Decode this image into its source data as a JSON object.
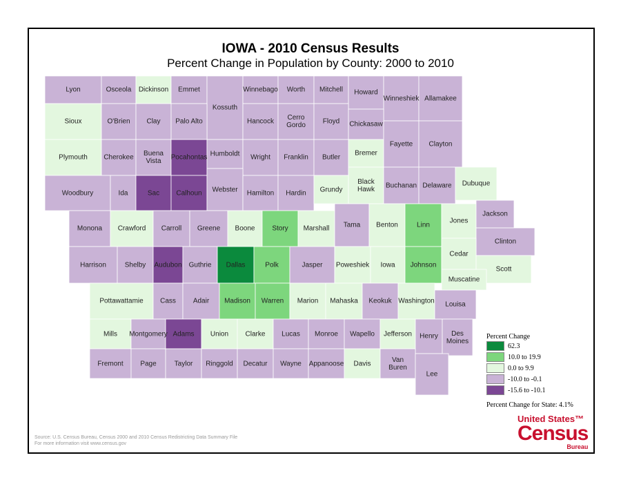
{
  "header": {
    "title": "IOWA - 2010 Census Results",
    "subtitle": "Percent Change in Population by County:  2000 to 2010"
  },
  "counties": [
    {
      "name": "Lyon",
      "color": "#c9b3d6"
    },
    {
      "name": "Osceola",
      "color": "#c9b3d6"
    },
    {
      "name": "Dickinson",
      "color": "#e3f7df"
    },
    {
      "name": "Emmet",
      "color": "#c9b3d6"
    },
    {
      "name": "Kossuth",
      "color": "#c9b3d6"
    },
    {
      "name": "Winnebago",
      "color": "#c9b3d6"
    },
    {
      "name": "Worth",
      "color": "#c9b3d6"
    },
    {
      "name": "Mitchell",
      "color": "#c9b3d6"
    },
    {
      "name": "Howard",
      "color": "#c9b3d6"
    },
    {
      "name": "Winneshiek",
      "color": "#c9b3d6"
    },
    {
      "name": "Allamakee",
      "color": "#c9b3d6"
    },
    {
      "name": "Sioux",
      "color": "#e3f7df"
    },
    {
      "name": "O'Brien",
      "color": "#c9b3d6"
    },
    {
      "name": "Clay",
      "color": "#c9b3d6"
    },
    {
      "name": "Palo Alto",
      "color": "#c9b3d6"
    },
    {
      "name": "Hancock",
      "color": "#c9b3d6"
    },
    {
      "name": "Cerro Gordo",
      "color": "#c9b3d6"
    },
    {
      "name": "Floyd",
      "color": "#c9b3d6"
    },
    {
      "name": "Chickasaw",
      "color": "#c9b3d6"
    },
    {
      "name": "Plymouth",
      "color": "#e3f7df"
    },
    {
      "name": "Cherokee",
      "color": "#c9b3d6"
    },
    {
      "name": "Buena Vista",
      "color": "#c9b3d6"
    },
    {
      "name": "Pocahontas",
      "color": "#7b4794"
    },
    {
      "name": "Humboldt",
      "color": "#c9b3d6"
    },
    {
      "name": "Wright",
      "color": "#c9b3d6"
    },
    {
      "name": "Franklin",
      "color": "#c9b3d6"
    },
    {
      "name": "Butler",
      "color": "#c9b3d6"
    },
    {
      "name": "Bremer",
      "color": "#e3f7df"
    },
    {
      "name": "Fayette",
      "color": "#c9b3d6"
    },
    {
      "name": "Clayton",
      "color": "#c9b3d6"
    },
    {
      "name": "Woodbury",
      "color": "#c9b3d6"
    },
    {
      "name": "Ida",
      "color": "#c9b3d6"
    },
    {
      "name": "Sac",
      "color": "#7b4794"
    },
    {
      "name": "Calhoun",
      "color": "#7b4794"
    },
    {
      "name": "Webster",
      "color": "#c9b3d6"
    },
    {
      "name": "Hamilton",
      "color": "#c9b3d6"
    },
    {
      "name": "Hardin",
      "color": "#c9b3d6"
    },
    {
      "name": "Grundy",
      "color": "#e3f7df"
    },
    {
      "name": "Black Hawk",
      "color": "#e3f7df"
    },
    {
      "name": "Buchanan",
      "color": "#c9b3d6"
    },
    {
      "name": "Delaware",
      "color": "#c9b3d6"
    },
    {
      "name": "Dubuque",
      "color": "#e3f7df"
    },
    {
      "name": "Monona",
      "color": "#c9b3d6"
    },
    {
      "name": "Crawford",
      "color": "#e3f7df"
    },
    {
      "name": "Carroll",
      "color": "#c9b3d6"
    },
    {
      "name": "Greene",
      "color": "#c9b3d6"
    },
    {
      "name": "Boone",
      "color": "#e3f7df"
    },
    {
      "name": "Story",
      "color": "#7dd67d"
    },
    {
      "name": "Marshall",
      "color": "#e3f7df"
    },
    {
      "name": "Tama",
      "color": "#c9b3d6"
    },
    {
      "name": "Benton",
      "color": "#e3f7df"
    },
    {
      "name": "Linn",
      "color": "#7dd67d"
    },
    {
      "name": "Jones",
      "color": "#e3f7df"
    },
    {
      "name": "Jackson",
      "color": "#c9b3d6"
    },
    {
      "name": "Clinton",
      "color": "#c9b3d6"
    },
    {
      "name": "Harrison",
      "color": "#c9b3d6"
    },
    {
      "name": "Shelby",
      "color": "#c9b3d6"
    },
    {
      "name": "Audubon",
      "color": "#7b4794"
    },
    {
      "name": "Guthrie",
      "color": "#c9b3d6"
    },
    {
      "name": "Dallas",
      "color": "#0b8a3d"
    },
    {
      "name": "Polk",
      "color": "#7dd67d"
    },
    {
      "name": "Jasper",
      "color": "#c9b3d6"
    },
    {
      "name": "Poweshiek",
      "color": "#e3f7df"
    },
    {
      "name": "Iowa",
      "color": "#e3f7df"
    },
    {
      "name": "Johnson",
      "color": "#7dd67d"
    },
    {
      "name": "Cedar",
      "color": "#e3f7df"
    },
    {
      "name": "Scott",
      "color": "#e3f7df"
    },
    {
      "name": "Muscatine",
      "color": "#e3f7df"
    },
    {
      "name": "Pottawattamie",
      "color": "#e3f7df"
    },
    {
      "name": "Cass",
      "color": "#c9b3d6"
    },
    {
      "name": "Adair",
      "color": "#c9b3d6"
    },
    {
      "name": "Madison",
      "color": "#7dd67d"
    },
    {
      "name": "Warren",
      "color": "#7dd67d"
    },
    {
      "name": "Marion",
      "color": "#e3f7df"
    },
    {
      "name": "Mahaska",
      "color": "#e3f7df"
    },
    {
      "name": "Keokuk",
      "color": "#c9b3d6"
    },
    {
      "name": "Washington",
      "color": "#e3f7df"
    },
    {
      "name": "Louisa",
      "color": "#c9b3d6"
    },
    {
      "name": "Mills",
      "color": "#e3f7df"
    },
    {
      "name": "Montgomery",
      "color": "#c9b3d6"
    },
    {
      "name": "Adams",
      "color": "#7b4794"
    },
    {
      "name": "Union",
      "color": "#e3f7df"
    },
    {
      "name": "Clarke",
      "color": "#e3f7df"
    },
    {
      "name": "Lucas",
      "color": "#c9b3d6"
    },
    {
      "name": "Monroe",
      "color": "#c9b3d6"
    },
    {
      "name": "Wapello",
      "color": "#c9b3d6"
    },
    {
      "name": "Jefferson",
      "color": "#e3f7df"
    },
    {
      "name": "Henry",
      "color": "#c9b3d6"
    },
    {
      "name": "Des Moines",
      "color": "#c9b3d6"
    },
    {
      "name": "Fremont",
      "color": "#c9b3d6"
    },
    {
      "name": "Page",
      "color": "#c9b3d6"
    },
    {
      "name": "Taylor",
      "color": "#c9b3d6"
    },
    {
      "name": "Ringgold",
      "color": "#c9b3d6"
    },
    {
      "name": "Decatur",
      "color": "#c9b3d6"
    },
    {
      "name": "Wayne",
      "color": "#c9b3d6"
    },
    {
      "name": "Appanoose",
      "color": "#c9b3d6"
    },
    {
      "name": "Davis",
      "color": "#e3f7df"
    },
    {
      "name": "Van Buren",
      "color": "#c9b3d6"
    },
    {
      "name": "Lee",
      "color": "#c9b3d6"
    }
  ],
  "legend": {
    "title": "Percent Change",
    "items": [
      {
        "label": "62.3",
        "color": "#0b8a3d"
      },
      {
        "label": "10.0 to 19.9",
        "color": "#7dd67d"
      },
      {
        "label": "0.0 to 9.9",
        "color": "#e3f7df"
      },
      {
        "label": "-10.0 to -0.1",
        "color": "#c9b3d6"
      },
      {
        "label": "-15.6 to -10.1",
        "color": "#7b4794"
      }
    ],
    "state_note": "Percent Change for State:  4.1%"
  },
  "footer": {
    "source": "Source:  U.S. Census Bureau, Census 2000 and 2010 Census Redistricting Data Summary File",
    "more_info": "For more information visit www.census.gov"
  },
  "logo": {
    "line1": "United States™",
    "line2": "Census",
    "line3": "Bureau"
  }
}
